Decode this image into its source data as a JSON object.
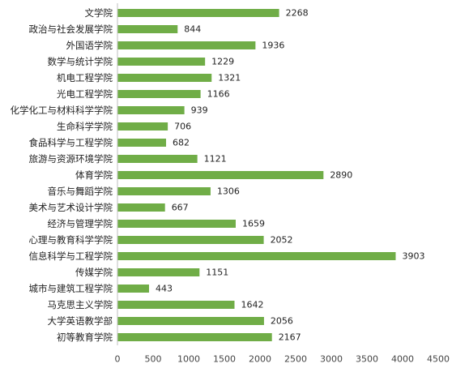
{
  "chart_data": {
    "type": "bar",
    "orientation": "horizontal",
    "title": "",
    "xlabel": "",
    "ylabel": "",
    "categories": [
      "文学院",
      "政治与社会发展学院",
      "外国语学院",
      "数学与统计学院",
      "机电工程学院",
      "光电工程学院",
      "化学化工与材料科学学院",
      "生命科学学院",
      "食品科学与工程学院",
      "旅游与资源环境学院",
      "体育学院",
      "音乐与舞蹈学院",
      "美术与艺术设计学院",
      "经济与管理学院",
      "心理与教育科学学院",
      "信息科学与工程学院",
      "传媒学院",
      "城市与建筑工程学院",
      "马克思主义学院",
      "大学英语教学部",
      "初等教育学院"
    ],
    "values": [
      2268,
      844,
      1936,
      1229,
      1321,
      1166,
      939,
      706,
      682,
      1121,
      2890,
      1306,
      667,
      1659,
      2052,
      3903,
      1151,
      443,
      1642,
      2056,
      2167
    ],
    "xlim": [
      0,
      4500
    ],
    "xticks": [
      0,
      500,
      1000,
      1500,
      2000,
      2500,
      3000,
      3500,
      4000,
      4500
    ],
    "bar_color": "#70ad47",
    "axis_color": "#bfbfbf",
    "data_labels": true,
    "grid": false,
    "legend": "none"
  }
}
